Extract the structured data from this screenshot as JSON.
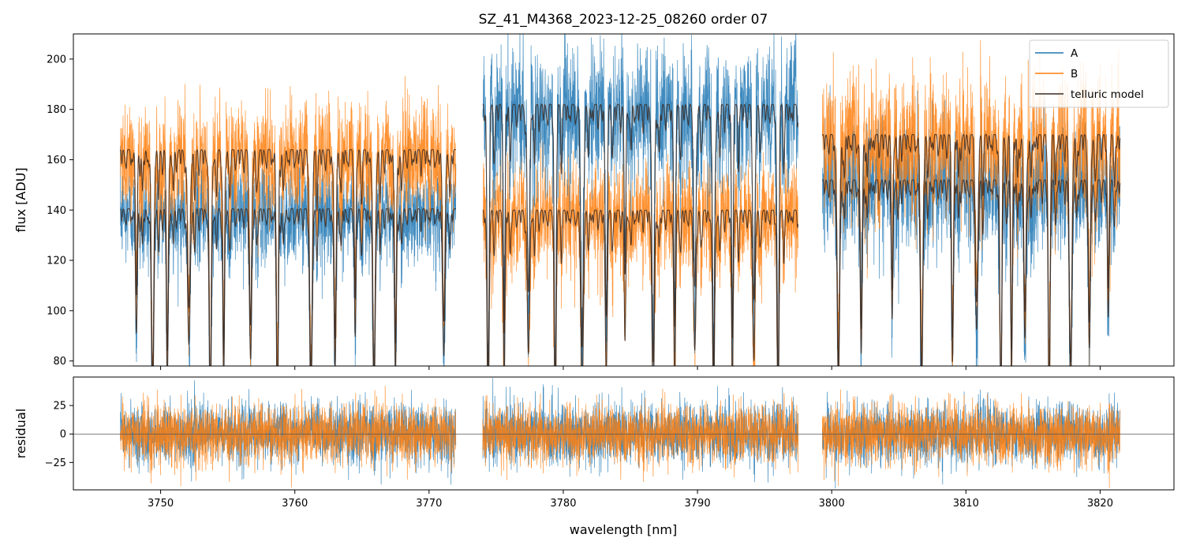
{
  "title": "SZ_41_M4368_2023-12-25_08260  order 07",
  "colors": {
    "A": "#1f77b4",
    "B": "#ff7f0e",
    "model": "#3a2a22",
    "zero_line": "#555555"
  },
  "chart_data": [
    {
      "type": "line",
      "panel": "flux",
      "ylabel": "flux [ADU]",
      "xlim": [
        3743.5,
        3825.5
      ],
      "ylim": [
        78,
        210
      ],
      "yticks": [
        80,
        100,
        120,
        140,
        160,
        180,
        200
      ],
      "ytick_labels": [
        "80",
        "100",
        "120",
        "140",
        "160",
        "180",
        "200"
      ],
      "legend": {
        "location": "top-right",
        "entries": [
          {
            "label": "A",
            "color": "#1f77b4"
          },
          {
            "label": "B",
            "color": "#ff7f0e"
          },
          {
            "label": "telluric model",
            "color": "#3a2a22"
          }
        ]
      },
      "segments": [
        {
          "x_range": [
            3747.0,
            3772.0
          ],
          "A_continuum": 140.5,
          "B_continuum": 164.0,
          "noise_A": 9,
          "noise_B": 11
        },
        {
          "x_range": [
            3774.0,
            3797.5
          ],
          "A_continuum": 182.0,
          "B_continuum": 140.0,
          "noise_A": 13,
          "noise_B": 11
        },
        {
          "x_range": [
            3799.3,
            3821.5
          ],
          "A_continuum": 152.0,
          "B_continuum": 170.0,
          "noise_A": 12,
          "noise_B": 13
        }
      ],
      "absorption_lines_nm": [
        3748.2,
        3749.4,
        3750.5,
        3752.1,
        3753.7,
        3754.7,
        3756.7,
        3758.7,
        3761.2,
        3763.0,
        3764.5,
        3765.9,
        3767.5,
        3771.1,
        3774.4,
        3775.6,
        3777.4,
        3779.4,
        3781.4,
        3783.2,
        3784.6,
        3786.7,
        3788.3,
        3789.8,
        3791.2,
        3792.6,
        3794.2,
        3796.0,
        3800.5,
        3802.2,
        3804.5,
        3806.7,
        3809.0,
        3810.8,
        3812.6,
        3813.4,
        3814.4,
        3816.2,
        3817.8,
        3819.2,
        3820.6
      ]
    },
    {
      "type": "line",
      "panel": "residual",
      "ylabel": "residual",
      "xlabel": "wavelength [nm]",
      "xlim": [
        3743.5,
        3825.5
      ],
      "ylim": [
        -49,
        50
      ],
      "yticks": [
        -25,
        0,
        25
      ],
      "ytick_labels": [
        "−25",
        "0",
        "25"
      ],
      "xticks": [
        3750,
        3760,
        3770,
        3780,
        3790,
        3800,
        3810,
        3820
      ],
      "xtick_labels": [
        "3750",
        "3760",
        "3770",
        "3780",
        "3790",
        "3800",
        "3810",
        "3820"
      ],
      "zero_line": 0,
      "noise_sd": 13
    }
  ]
}
